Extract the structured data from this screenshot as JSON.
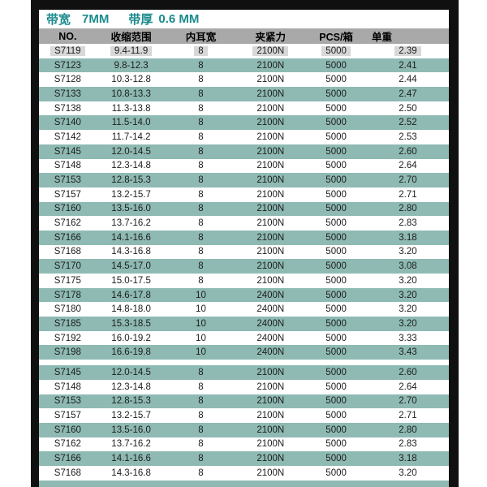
{
  "header": {
    "band_width_label": "带宽",
    "band_width_value": "7MM",
    "band_thickness_label": "带厚",
    "band_thickness_value": "0.6 MM"
  },
  "chart_data": {
    "type": "table",
    "title": "带宽 7MM 带厚 0.6 MM",
    "columns": [
      "NO.",
      "收缩范围",
      "内耳宽",
      "夹紧力",
      "PCS/箱",
      "单重"
    ],
    "sections": [
      {
        "rows": [
          [
            "S7119",
            "9.4-11.9",
            "8",
            "2100N",
            "5000",
            "2.39"
          ],
          [
            "S7123",
            "9.8-12.3",
            "8",
            "2100N",
            "5000",
            "2.41"
          ],
          [
            "S7128",
            "10.3-12.8",
            "8",
            "2100N",
            "5000",
            "2.44"
          ],
          [
            "S7133",
            "10.8-13.3",
            "8",
            "2100N",
            "5000",
            "2.47"
          ],
          [
            "S7138",
            "11.3-13.8",
            "8",
            "2100N",
            "5000",
            "2.50"
          ],
          [
            "S7140",
            "11.5-14.0",
            "8",
            "2100N",
            "5000",
            "2.52"
          ],
          [
            "S7142",
            "11.7-14.2",
            "8",
            "2100N",
            "5000",
            "2.53"
          ],
          [
            "S7145",
            "12.0-14.5",
            "8",
            "2100N",
            "5000",
            "2.60"
          ],
          [
            "S7148",
            "12.3-14.8",
            "8",
            "2100N",
            "5000",
            "2.64"
          ],
          [
            "S7153",
            "12.8-15.3",
            "8",
            "2100N",
            "5000",
            "2.70"
          ],
          [
            "S7157",
            "13.2-15.7",
            "8",
            "2100N",
            "5000",
            "2.71"
          ],
          [
            "S7160",
            "13.5-16.0",
            "8",
            "2100N",
            "5000",
            "2.80"
          ],
          [
            "S7162",
            "13.7-16.2",
            "8",
            "2100N",
            "5000",
            "2.83"
          ],
          [
            "S7166",
            "14.1-16.6",
            "8",
            "2100N",
            "5000",
            "3.18"
          ],
          [
            "S7168",
            "14.3-16.8",
            "8",
            "2100N",
            "5000",
            "3.20"
          ],
          [
            "S7170",
            "14.5-17.0",
            "8",
            "2100N",
            "5000",
            "3.08"
          ],
          [
            "S7175",
            "15.0-17.5",
            "8",
            "2100N",
            "5000",
            "3.20"
          ],
          [
            "S7178",
            "14.6-17.8",
            "10",
            "2400N",
            "5000",
            "3.20"
          ],
          [
            "S7180",
            "14.8-18.0",
            "10",
            "2400N",
            "5000",
            "3.20"
          ],
          [
            "S7185",
            "15.3-18.5",
            "10",
            "2400N",
            "5000",
            "3.20"
          ],
          [
            "S7192",
            "16.0-19.2",
            "10",
            "2400N",
            "5000",
            "3.33"
          ],
          [
            "S7198",
            "16.6-19.8",
            "10",
            "2400N",
            "5000",
            "3.43"
          ]
        ]
      },
      {
        "rows": [
          [
            "S7145",
            "12.0-14.5",
            "8",
            "2100N",
            "5000",
            "2.60"
          ],
          [
            "S7148",
            "12.3-14.8",
            "8",
            "2100N",
            "5000",
            "2.64"
          ],
          [
            "S7153",
            "12.8-15.3",
            "8",
            "2100N",
            "5000",
            "2.70"
          ],
          [
            "S7157",
            "13.2-15.7",
            "8",
            "2100N",
            "5000",
            "2.71"
          ],
          [
            "S7160",
            "13.5-16.0",
            "8",
            "2100N",
            "5000",
            "2.80"
          ],
          [
            "S7162",
            "13.7-16.2",
            "8",
            "2100N",
            "5000",
            "2.83"
          ],
          [
            "S7166",
            "14.1-16.6",
            "8",
            "2100N",
            "5000",
            "3.18"
          ],
          [
            "S7168",
            "14.3-16.8",
            "8",
            "2100N",
            "5000",
            "3.20"
          ]
        ]
      }
    ],
    "layout_hints": {
      "row_striping": "alternating white and teal",
      "first_row_cells_highlighted": true,
      "legend_position": "none",
      "grid": false
    }
  },
  "colors": {
    "teal_row": "#8ebab3",
    "header_gray": "#a9a9a9",
    "title_teal": "#1a8a8d",
    "frame_black": "#101010",
    "highlight_gray": "#d8d8d8",
    "background": "#ffffff"
  }
}
